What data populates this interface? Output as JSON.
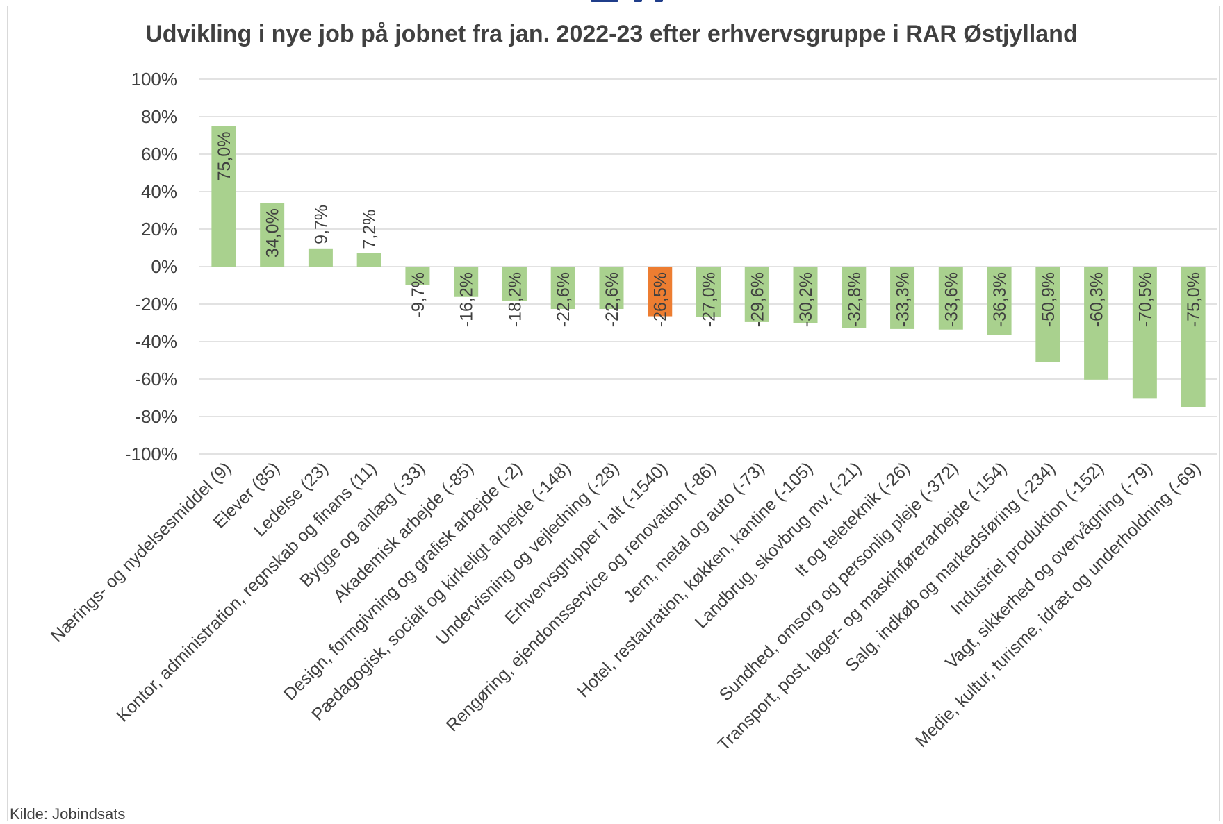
{
  "chart_data": {
    "type": "bar",
    "title": "Udvikling i nye job på jobnet fra jan. 2022-23 efter erhvervsgruppe i RAR Østjylland",
    "xlabel": "",
    "ylabel": "",
    "ylim": [
      -100,
      100
    ],
    "yticks": [
      "100%",
      "80%",
      "60%",
      "40%",
      "20%",
      "0%",
      "-20%",
      "-40%",
      "-60%",
      "-80%",
      "-100%"
    ],
    "ytick_values": [
      100,
      80,
      60,
      40,
      20,
      0,
      -20,
      -40,
      -60,
      -80,
      -100
    ],
    "grid": true,
    "legend": "none",
    "bar_color": "#a9d18e",
    "highlight_color": "#ed7d31",
    "highlight_index": 9,
    "categories": [
      "Nærings- og nydelsesmiddel (9)",
      "Elever (85)",
      "Ledelse (23)",
      "Kontor, administration, regnskab og finans (11)",
      "Bygge og anlæg (-33)",
      "Akademisk arbejde (-85)",
      "Design, formgivning og grafisk arbejde (-2)",
      "Pædagogisk, socialt og kirkeligt arbejde (-148)",
      "Undervisning og vejledning (-28)",
      "Erhvervsgrupper i alt (-1540)",
      "Rengøring, ejendomsservice og renovation (-86)",
      "Jern, metal og auto (-73)",
      "Hotel, restauration, køkken, kantine (-105)",
      "Landbrug, skovbrug mv. (-21)",
      "It og teleteknik (-26)",
      "Sundhed, omsorg og personlig pleje (-372)",
      "Transport, post, lager- og maskinførerarbejde (-154)",
      "Salg, indkøb og markedsføring (-234)",
      "Industriel produktion (-152)",
      "Vagt, sikkerhed og overvågning (-79)",
      "Medie, kultur, turisme, idræt og underholdning (-69)"
    ],
    "values": [
      75.0,
      34.0,
      9.7,
      7.2,
      -9.7,
      -16.2,
      -18.2,
      -22.6,
      -22.6,
      -26.5,
      -27.0,
      -29.6,
      -30.2,
      -32.8,
      -33.3,
      -33.6,
      -36.3,
      -50.9,
      -60.3,
      -70.5,
      -75.0
    ],
    "data_labels": [
      "75,0%",
      "34,0%",
      "9,7%",
      "7,2%",
      "-9,7%",
      "-16,2%",
      "-18,2%",
      "-22,6%",
      "-22,6%",
      "-26,5%",
      "-27,0%",
      "-29,6%",
      "-30,2%",
      "-32,8%",
      "-33,3%",
      "-33,6%",
      "-36,3%",
      "-50,9%",
      "-60,3%",
      "-70,5%",
      "-75,0%"
    ]
  },
  "source": "Kilde: Jobindsats"
}
